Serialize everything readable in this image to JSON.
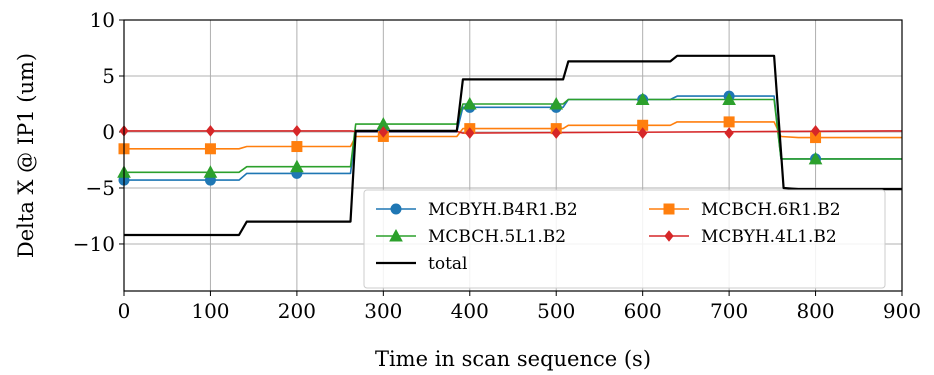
{
  "chart_data": {
    "type": "line",
    "title": "",
    "xlabel": "Time in scan sequence (s)",
    "ylabel": "Delta X @ IP1 (um)",
    "xlim": [
      0,
      900
    ],
    "ylim": [
      -14.2,
      10
    ],
    "xticks": [
      0,
      100,
      200,
      300,
      400,
      500,
      600,
      700,
      800,
      900
    ],
    "yticks": [
      -10,
      -5,
      0,
      5,
      10
    ],
    "ytick_labels": [
      "−10",
      "−5",
      "0",
      "5",
      "10"
    ],
    "grid": true,
    "legend_placement": "lower-right",
    "series": [
      {
        "name": "MCBYH.B4R1.B2",
        "color": "#1f77b4",
        "marker": "circle",
        "x": [
          0,
          133,
          142,
          262,
          268,
          385,
          392,
          508,
          514,
          632,
          640,
          752,
          760,
          780,
          900
        ],
        "y": [
          -4.3,
          -4.3,
          -3.7,
          -3.7,
          0.0,
          0.0,
          2.2,
          2.2,
          2.9,
          2.9,
          3.2,
          3.2,
          -2.4,
          -2.4,
          -2.4
        ],
        "marker_x": [
          0,
          100,
          200,
          300,
          400,
          500,
          600,
          700,
          800
        ],
        "marker_y": [
          -4.3,
          -4.3,
          -3.7,
          0.0,
          2.2,
          2.2,
          2.9,
          3.2,
          -2.4
        ]
      },
      {
        "name": "MCBCH.6R1.B2",
        "color": "#ff7f0e",
        "marker": "square",
        "x": [
          0,
          133,
          142,
          262,
          268,
          385,
          392,
          508,
          514,
          632,
          640,
          752,
          760,
          780,
          900
        ],
        "y": [
          -1.5,
          -1.5,
          -1.3,
          -1.3,
          -0.4,
          -0.4,
          0.3,
          0.3,
          0.6,
          0.6,
          0.9,
          0.9,
          -0.4,
          -0.5,
          -0.5
        ],
        "marker_x": [
          0,
          100,
          200,
          300,
          400,
          500,
          600,
          700,
          800
        ],
        "marker_y": [
          -1.5,
          -1.5,
          -1.3,
          -0.4,
          0.3,
          0.3,
          0.6,
          0.9,
          -0.5
        ]
      },
      {
        "name": "MCBCH.5L1.B2",
        "color": "#2ca02c",
        "marker": "triangle",
        "x": [
          0,
          133,
          142,
          262,
          268,
          385,
          392,
          508,
          514,
          632,
          640,
          752,
          760,
          780,
          900
        ],
        "y": [
          -3.6,
          -3.6,
          -3.1,
          -3.1,
          0.7,
          0.7,
          2.5,
          2.5,
          2.9,
          2.9,
          2.9,
          2.9,
          -2.4,
          -2.4,
          -2.4
        ],
        "marker_x": [
          0,
          100,
          200,
          300,
          400,
          500,
          600,
          700,
          800
        ],
        "marker_y": [
          -3.6,
          -3.6,
          -3.1,
          0.7,
          2.5,
          2.5,
          2.9,
          2.9,
          -2.4
        ]
      },
      {
        "name": "MCBYH.4L1.B2",
        "color": "#d62728",
        "marker": "diamond",
        "x": [
          0,
          262,
          268,
          385,
          392,
          900
        ],
        "y": [
          0.1,
          0.1,
          0.05,
          0.05,
          -0.1,
          0.1
        ],
        "marker_x": [
          0,
          100,
          200,
          300,
          400,
          500,
          600,
          700,
          800
        ],
        "marker_y": [
          0.1,
          0.1,
          0.1,
          0.0,
          -0.1,
          -0.1,
          -0.1,
          -0.1,
          0.1
        ]
      },
      {
        "name": "total",
        "color": "#000000",
        "marker": "none",
        "x": [
          0,
          133,
          142,
          262,
          268,
          385,
          392,
          508,
          514,
          632,
          640,
          752,
          763,
          780,
          900
        ],
        "y": [
          -9.2,
          -9.2,
          -8.0,
          -8.0,
          0.1,
          0.1,
          4.7,
          4.7,
          6.3,
          6.3,
          6.8,
          6.8,
          -5.0,
          -5.1,
          -5.1
        ],
        "marker_x": [],
        "marker_y": []
      }
    ],
    "legend_order": [
      0,
      1,
      2,
      3,
      4
    ]
  }
}
